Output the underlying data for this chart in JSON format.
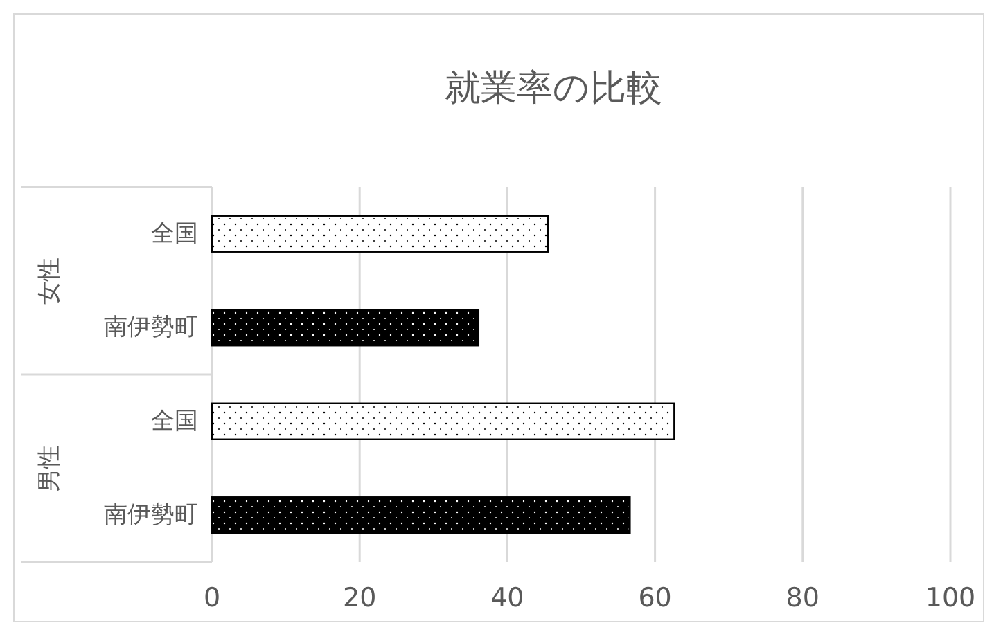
{
  "chart_data": {
    "type": "bar",
    "orientation": "horizontal",
    "title": "就業率の比較",
    "categories": [
      "全国",
      "南伊勢町",
      "全国",
      "南伊勢町"
    ],
    "values": [
      45.5,
      36.1,
      62.6,
      56.6
    ],
    "colors": [
      "#ffffff",
      "#000000",
      "#ffffff",
      "#000000"
    ],
    "annotations": [
      "女性",
      "男性"
    ],
    "xlim": [
      0,
      100
    ],
    "xticks": [
      0,
      20,
      40,
      60,
      80,
      100
    ],
    "grid": "x"
  }
}
